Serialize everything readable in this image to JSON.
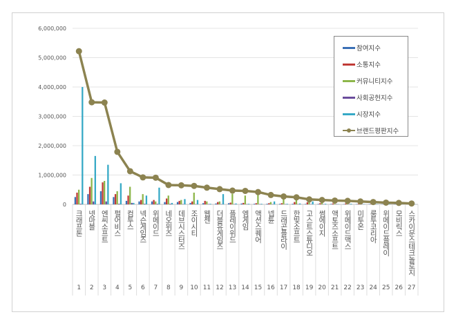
{
  "chart_data": {
    "type": "bar",
    "title": "",
    "xlabel": "",
    "ylabel": "",
    "ylim": [
      0,
      6000000
    ],
    "yticks": [
      "0",
      "1,000,000",
      "2,000,000",
      "3,000,000",
      "4,000,000",
      "5,000,000",
      "6,000,000"
    ],
    "grid": true,
    "legend_position": "top-right",
    "categories": [
      "크래프톤",
      "넷마블",
      "엔씨소프트",
      "펄어비스",
      "컴투스",
      "넥슨게임즈",
      "위메이드",
      "네오위즈",
      "데브시스터즈",
      "조이시티",
      "웹젠",
      "더블유게임즈",
      "플레이위드",
      "엠게임",
      "액션스퀘어",
      "넵튠",
      "드래곤플라이",
      "한빛소프트",
      "고스트스튜디오",
      "썸에이지",
      "액토즈소프트",
      "위메이드맥스",
      "미투온",
      "룽투코리아",
      "위메이드플레이",
      "모비릭스",
      "스카이문스테크놀로지"
    ],
    "ranks": [
      "1",
      "2",
      "3",
      "4",
      "5",
      "6",
      "7",
      "8",
      "9",
      "10",
      "11",
      "12",
      "13",
      "14",
      "15",
      "16",
      "17",
      "18",
      "19",
      "20",
      "21",
      "22",
      "23",
      "24",
      "25",
      "26",
      "27"
    ],
    "series": [
      {
        "name": "참여지수",
        "type": "bar",
        "color": "#3a6fb5",
        "values": [
          250000,
          350000,
          450000,
          250000,
          120000,
          100000,
          100000,
          80000,
          80000,
          50000,
          40000,
          30000,
          40000,
          30000,
          20000,
          20000,
          20000,
          20000,
          15000,
          15000,
          15000,
          10000,
          10000,
          10000,
          8000,
          6000,
          5000
        ]
      },
      {
        "name": "소통지수",
        "type": "bar",
        "color": "#c03a36",
        "values": [
          400000,
          600000,
          750000,
          350000,
          300000,
          150000,
          150000,
          200000,
          120000,
          100000,
          120000,
          80000,
          60000,
          50000,
          40000,
          40000,
          40000,
          80000,
          70000,
          40000,
          30000,
          30000,
          20000,
          20000,
          15000,
          10000,
          8000
        ]
      },
      {
        "name": "커뮤니티지수",
        "type": "bar",
        "color": "#8db64a",
        "values": [
          500000,
          900000,
          800000,
          450000,
          600000,
          350000,
          100000,
          300000,
          150000,
          400000,
          100000,
          100000,
          360000,
          300000,
          400000,
          80000,
          300000,
          300000,
          250000,
          200000,
          20000,
          20000,
          30000,
          15000,
          10000,
          10000,
          8000
        ]
      },
      {
        "name": "사회공헌지수",
        "type": "bar",
        "color": "#6a4c9c",
        "values": [
          20000,
          100000,
          100000,
          20000,
          50000,
          20000,
          20000,
          20000,
          10000,
          10000,
          10000,
          10000,
          10000,
          10000,
          10000,
          10000,
          10000,
          10000,
          10000,
          10000,
          10000,
          10000,
          5000,
          5000,
          5000,
          5000,
          5000
        ]
      },
      {
        "name": "시장지수",
        "type": "bar",
        "color": "#36a9c6",
        "values": [
          4000000,
          1650000,
          1350000,
          720000,
          50000,
          300000,
          570000,
          50000,
          180000,
          150000,
          20000,
          350000,
          30000,
          20000,
          20000,
          100000,
          20000,
          30000,
          100000,
          20000,
          10000,
          20000,
          10000,
          10000,
          10000,
          10000,
          5000
        ]
      },
      {
        "name": "브랜드평판지수",
        "type": "line",
        "color": "#8c8350",
        "values": [
          5220000,
          3480000,
          3470000,
          1790000,
          1130000,
          920000,
          910000,
          660000,
          650000,
          630000,
          570000,
          520000,
          470000,
          460000,
          420000,
          320000,
          270000,
          240000,
          170000,
          150000,
          130000,
          120000,
          100000,
          80000,
          60000,
          50000,
          30000
        ]
      }
    ]
  }
}
